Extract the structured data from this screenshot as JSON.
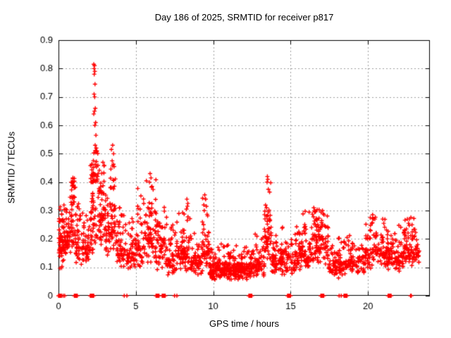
{
  "chart_data": {
    "type": "scatter",
    "title": "Day 186 of 2025, SRMTID for receiver p817",
    "xlabel": "GPS time / hours",
    "ylabel": "SRMTID / TECUs",
    "xlim": [
      0,
      24
    ],
    "ylim": [
      0,
      0.9
    ],
    "xticks": [
      0,
      5,
      10,
      15,
      20
    ],
    "xtick_labels": [
      "0",
      "5",
      "10",
      "15",
      "20"
    ],
    "yticks": [
      0,
      0.1,
      0.2,
      0.3,
      0.4,
      0.5,
      0.6,
      0.7,
      0.8,
      0.9
    ],
    "ytick_labels": [
      "0",
      "0.1",
      "0.2",
      "0.3",
      "0.4",
      "0.5",
      "0.6",
      "0.7",
      "0.8",
      "0.9"
    ],
    "grid": true,
    "legend": "none",
    "marker": "plus",
    "marker_color": "#ff0000",
    "grid_color": "#9e9e9e",
    "axis_color": "#000000",
    "text_color": "#000000",
    "background": "#ffffff",
    "seed": 1864817,
    "bands": [
      [
        0.02,
        0.35,
        60,
        0.09,
        0.26,
        0.33,
        0.3
      ],
      [
        0.35,
        0.7,
        42,
        0.13,
        0.27,
        0.33,
        0.25
      ],
      [
        0.7,
        1.1,
        55,
        0.14,
        0.32,
        0.42,
        0.3
      ],
      [
        1.1,
        1.6,
        48,
        0.1,
        0.26,
        0.33,
        0.22
      ],
      [
        1.6,
        2.05,
        42,
        0.1,
        0.24,
        0.35,
        0.22
      ],
      [
        2.05,
        2.6,
        85,
        0.14,
        0.4,
        0.52,
        0.4
      ],
      [
        2.6,
        3.05,
        60,
        0.15,
        0.36,
        0.47,
        0.3
      ],
      [
        3.05,
        3.35,
        28,
        0.12,
        0.28,
        0.36,
        0.25
      ],
      [
        3.35,
        3.7,
        45,
        0.15,
        0.38,
        0.5,
        0.3
      ],
      [
        3.7,
        4.3,
        55,
        0.09,
        0.22,
        0.32,
        0.22
      ],
      [
        4.3,
        5.0,
        55,
        0.08,
        0.18,
        0.28,
        0.22
      ],
      [
        5.0,
        5.6,
        50,
        0.09,
        0.24,
        0.38,
        0.25
      ],
      [
        5.6,
        6.3,
        65,
        0.1,
        0.28,
        0.42,
        0.25
      ],
      [
        6.3,
        7.0,
        62,
        0.09,
        0.24,
        0.33,
        0.25
      ],
      [
        7.0,
        7.6,
        50,
        0.07,
        0.18,
        0.26,
        0.22
      ],
      [
        7.6,
        8.1,
        46,
        0.08,
        0.2,
        0.3,
        0.22
      ],
      [
        8.1,
        8.6,
        45,
        0.07,
        0.2,
        0.33,
        0.22
      ],
      [
        8.6,
        9.3,
        55,
        0.06,
        0.16,
        0.23,
        0.2
      ],
      [
        9.3,
        9.75,
        45,
        0.08,
        0.22,
        0.35,
        0.25
      ],
      [
        9.75,
        10.5,
        85,
        0.05,
        0.13,
        0.18,
        0.18
      ],
      [
        10.5,
        11.5,
        115,
        0.05,
        0.13,
        0.19,
        0.18
      ],
      [
        11.5,
        12.5,
        105,
        0.05,
        0.13,
        0.18,
        0.18
      ],
      [
        12.5,
        13.3,
        70,
        0.06,
        0.15,
        0.22,
        0.2
      ],
      [
        13.3,
        13.75,
        50,
        0.1,
        0.28,
        0.4,
        0.3
      ],
      [
        13.75,
        14.4,
        55,
        0.07,
        0.16,
        0.22,
        0.2
      ],
      [
        14.4,
        15.5,
        90,
        0.07,
        0.18,
        0.26,
        0.22
      ],
      [
        15.5,
        16.3,
        70,
        0.09,
        0.21,
        0.3,
        0.22
      ],
      [
        16.3,
        17.45,
        110,
        0.1,
        0.24,
        0.31,
        0.25
      ],
      [
        17.45,
        18.7,
        90,
        0.06,
        0.15,
        0.21,
        0.2
      ],
      [
        18.7,
        19.8,
        80,
        0.07,
        0.16,
        0.22,
        0.2
      ],
      [
        19.8,
        20.6,
        65,
        0.08,
        0.2,
        0.28,
        0.25
      ],
      [
        20.6,
        21.3,
        58,
        0.09,
        0.19,
        0.27,
        0.22
      ],
      [
        21.3,
        22.2,
        75,
        0.08,
        0.18,
        0.25,
        0.22
      ],
      [
        22.2,
        23.1,
        85,
        0.09,
        0.2,
        0.28,
        0.25
      ],
      [
        23.1,
        23.35,
        15,
        0.1,
        0.18,
        0.21,
        0.2
      ]
    ],
    "outlier_points": [
      [
        2.28,
        0.815
      ],
      [
        2.33,
        0.81
      ],
      [
        2.3,
        0.8
      ],
      [
        2.35,
        0.79
      ],
      [
        2.31,
        0.78
      ],
      [
        2.36,
        0.745
      ],
      [
        2.3,
        0.71
      ],
      [
        2.34,
        0.7
      ],
      [
        2.38,
        0.66
      ],
      [
        2.33,
        0.65
      ],
      [
        2.28,
        0.64
      ],
      [
        2.4,
        0.61
      ],
      [
        2.35,
        0.6
      ],
      [
        2.42,
        0.565
      ],
      [
        2.37,
        0.53
      ],
      [
        2.44,
        0.52
      ],
      [
        2.48,
        0.51
      ],
      [
        3.42,
        0.515
      ],
      [
        3.5,
        0.53
      ],
      [
        3.56,
        0.5
      ],
      [
        3.47,
        0.475
      ],
      [
        3.6,
        0.455
      ],
      [
        0.88,
        0.4
      ],
      [
        0.93,
        0.415
      ],
      [
        0.97,
        0.39
      ],
      [
        1.02,
        0.38
      ],
      [
        5.92,
        0.43
      ],
      [
        5.98,
        0.415
      ],
      [
        5.88,
        0.4
      ],
      [
        6.04,
        0.385
      ],
      [
        8.3,
        0.34
      ],
      [
        8.36,
        0.325
      ],
      [
        8.27,
        0.305
      ],
      [
        9.45,
        0.355
      ],
      [
        9.5,
        0.34
      ],
      [
        9.56,
        0.315
      ],
      [
        9.42,
        0.3
      ],
      [
        13.5,
        0.42
      ],
      [
        13.53,
        0.41
      ],
      [
        13.48,
        0.4
      ],
      [
        13.56,
        0.375
      ],
      [
        13.45,
        0.31
      ],
      [
        13.58,
        0.295
      ],
      [
        16.5,
        0.31
      ],
      [
        16.56,
        0.295
      ],
      [
        17.06,
        0.3
      ],
      [
        17.16,
        0.285
      ],
      [
        20.3,
        0.285
      ],
      [
        20.36,
        0.27
      ],
      [
        20.25,
        0.255
      ],
      [
        20.95,
        0.27
      ],
      [
        21.02,
        0.255
      ],
      [
        22.55,
        0.27
      ],
      [
        22.62,
        0.255
      ],
      [
        22.85,
        0.25
      ]
    ],
    "zero_runs": [
      [
        0.0,
        0.22,
        1
      ],
      [
        0.3,
        0.4,
        0
      ],
      [
        1.02,
        1.25,
        1
      ],
      [
        2.05,
        2.3,
        1
      ],
      [
        4.25,
        4.42,
        0
      ],
      [
        6.3,
        6.52,
        1
      ],
      [
        6.7,
        6.92,
        1
      ],
      [
        7.5,
        7.65,
        0
      ],
      [
        12.3,
        12.52,
        1
      ],
      [
        14.8,
        15.02,
        1
      ],
      [
        16.95,
        17.18,
        1
      ],
      [
        18.14,
        18.27,
        0
      ],
      [
        18.45,
        18.68,
        1
      ],
      [
        21.3,
        21.52,
        1
      ],
      [
        22.75,
        22.8,
        0
      ]
    ]
  }
}
